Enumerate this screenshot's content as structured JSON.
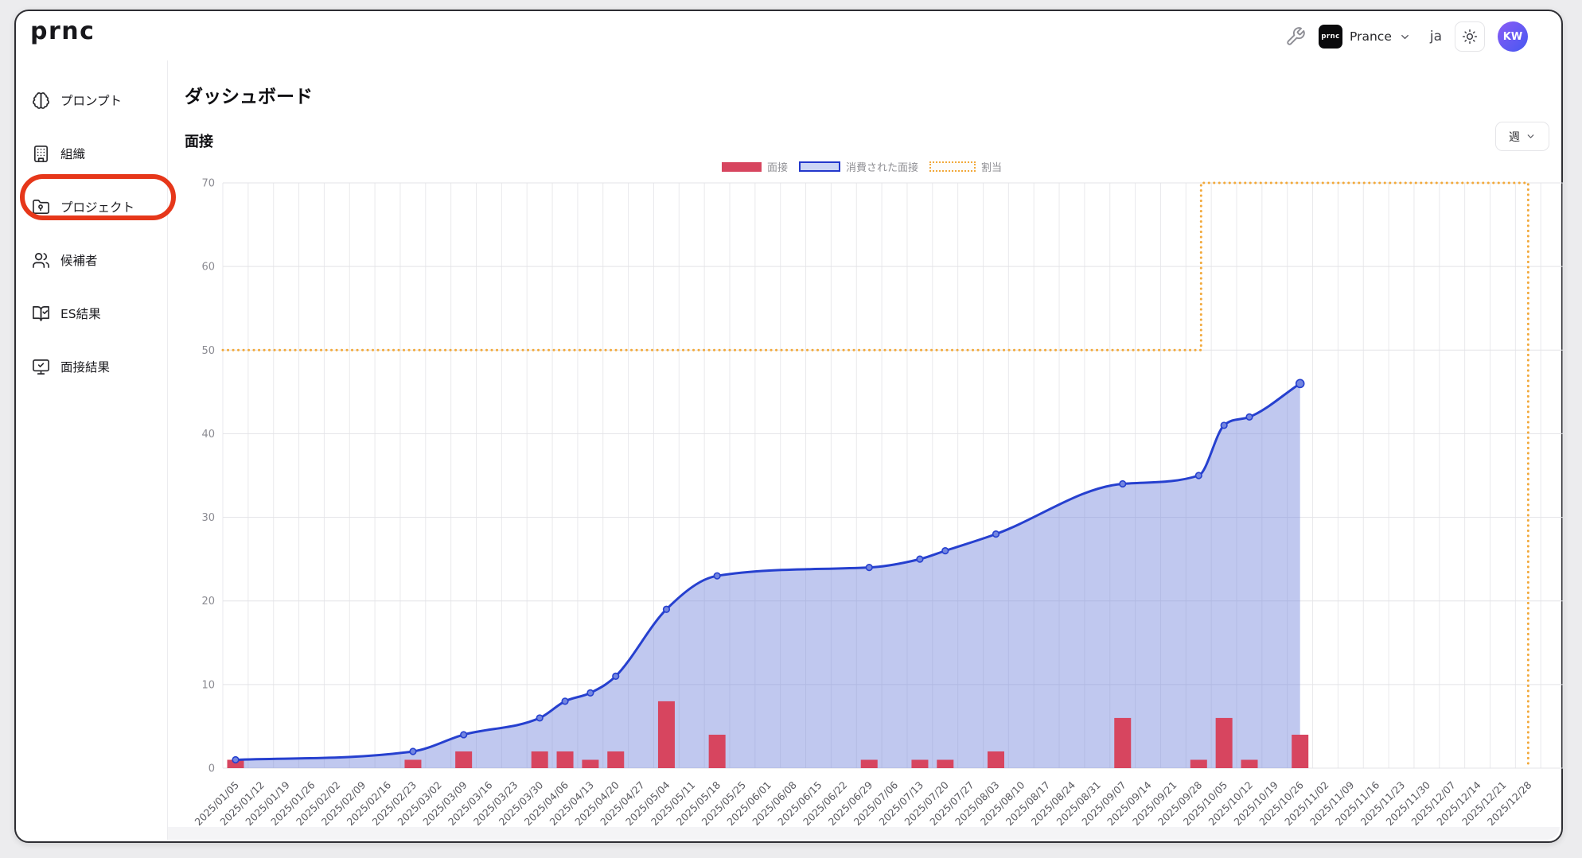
{
  "topbar": {
    "logo_text": "prnc",
    "org": {
      "logo_text": "prnc",
      "name": "Prance"
    },
    "locale_label": "ja",
    "avatar_initials": "KW"
  },
  "sidebar": {
    "items": [
      {
        "label": "プロンプト",
        "icon": "brain-icon"
      },
      {
        "label": "組織",
        "icon": "building-icon"
      },
      {
        "label": "プロジェクト",
        "icon": "folder-icon",
        "annotated": true
      },
      {
        "label": "候補者",
        "icon": "users-icon"
      },
      {
        "label": "ES結果",
        "icon": "book-check-icon"
      },
      {
        "label": "面接結果",
        "icon": "monitor-check-icon"
      }
    ]
  },
  "main": {
    "page_title": "ダッシュボード",
    "section_title": "面接",
    "period_selector": {
      "label": "週"
    }
  },
  "annotation": {
    "shape": "oval",
    "color": "#e6371a",
    "target": "プロジェクト"
  },
  "chart_data": {
    "type": "area",
    "title": "面接",
    "legend": [
      {
        "label": "面接",
        "type": "bar",
        "color": "#d7455f"
      },
      {
        "label": "消費された面接",
        "type": "area",
        "line_color": "#2640cf",
        "fill_color": "#ccd6f5"
      },
      {
        "label": "割当",
        "type": "dotted-step",
        "color": "#f2a93b"
      }
    ],
    "ylim": [
      0,
      70
    ],
    "yticks": [
      0,
      10,
      20,
      30,
      40,
      50,
      60,
      70
    ],
    "grid": true,
    "legend_position": "top-center",
    "x_labels": [
      "2025/01/05",
      "2025/01/12",
      "2025/01/19",
      "2025/01/26",
      "2025/02/02",
      "2025/02/09",
      "2025/02/16",
      "2025/02/23",
      "2025/03/02",
      "2025/03/09",
      "2025/03/16",
      "2025/03/23",
      "2025/03/30",
      "2025/04/06",
      "2025/04/13",
      "2025/04/20",
      "2025/04/27",
      "2025/05/04",
      "2025/05/11",
      "2025/05/18",
      "2025/05/25",
      "2025/06/01",
      "2025/06/08",
      "2025/06/15",
      "2025/06/22",
      "2025/06/29",
      "2025/07/06",
      "2025/07/13",
      "2025/07/20",
      "2025/07/27",
      "2025/08/03",
      "2025/08/10",
      "2025/08/17",
      "2025/08/24",
      "2025/08/31",
      "2025/09/07",
      "2025/09/14",
      "2025/09/21",
      "2025/09/28",
      "2025/10/05",
      "2025/10/12",
      "2025/10/19",
      "2025/10/26",
      "2025/11/02",
      "2025/11/09",
      "2025/11/16",
      "2025/11/23",
      "2025/11/30",
      "2025/12/07",
      "2025/12/14",
      "2025/12/21",
      "2025/12/28"
    ],
    "series": [
      {
        "name": "面接",
        "type": "bar",
        "color": "#d7455f",
        "data": [
          {
            "x": "2025/01/05",
            "y": 1
          },
          {
            "x": "2025/02/23",
            "y": 1
          },
          {
            "x": "2025/03/09",
            "y": 2
          },
          {
            "x": "2025/03/30",
            "y": 2
          },
          {
            "x": "2025/04/06",
            "y": 2
          },
          {
            "x": "2025/04/13",
            "y": 1
          },
          {
            "x": "2025/04/20",
            "y": 2
          },
          {
            "x": "2025/05/04",
            "y": 8
          },
          {
            "x": "2025/05/18",
            "y": 4
          },
          {
            "x": "2025/06/29",
            "y": 1
          },
          {
            "x": "2025/07/13",
            "y": 1
          },
          {
            "x": "2025/07/20",
            "y": 1
          },
          {
            "x": "2025/08/03",
            "y": 2
          },
          {
            "x": "2025/09/07",
            "y": 6
          },
          {
            "x": "2025/09/28",
            "y": 1
          },
          {
            "x": "2025/10/05",
            "y": 6
          },
          {
            "x": "2025/10/12",
            "y": 1
          },
          {
            "x": "2025/10/26",
            "y": 4
          }
        ]
      },
      {
        "name": "消費された面接",
        "type": "line-area",
        "line_color": "#2640cf",
        "fill_color": "rgba(116,134,220,0.45)",
        "point_fill": "#7386e0",
        "data": [
          {
            "x": "2025/01/05",
            "y": 1
          },
          {
            "x": "2025/02/23",
            "y": 2
          },
          {
            "x": "2025/03/09",
            "y": 4
          },
          {
            "x": "2025/03/30",
            "y": 6
          },
          {
            "x": "2025/04/06",
            "y": 8
          },
          {
            "x": "2025/04/13",
            "y": 9
          },
          {
            "x": "2025/04/20",
            "y": 11
          },
          {
            "x": "2025/05/04",
            "y": 19
          },
          {
            "x": "2025/05/18",
            "y": 23
          },
          {
            "x": "2025/06/29",
            "y": 24
          },
          {
            "x": "2025/07/13",
            "y": 25
          },
          {
            "x": "2025/07/20",
            "y": 26
          },
          {
            "x": "2025/08/03",
            "y": 28
          },
          {
            "x": "2025/09/07",
            "y": 34
          },
          {
            "x": "2025/09/28",
            "y": 35
          },
          {
            "x": "2025/10/05",
            "y": 41
          },
          {
            "x": "2025/10/12",
            "y": 42
          },
          {
            "x": "2025/10/26",
            "y": 46
          }
        ]
      },
      {
        "name": "割当",
        "type": "dotted-step",
        "color": "#f2a93b",
        "segments": [
          {
            "from": "2025/01/05",
            "to": "2025/09/28",
            "y": 50
          },
          {
            "from": "2025/09/28",
            "to": "2025/12/28",
            "y": 70
          }
        ],
        "drop_to_baseline_at_end": true
      }
    ]
  }
}
